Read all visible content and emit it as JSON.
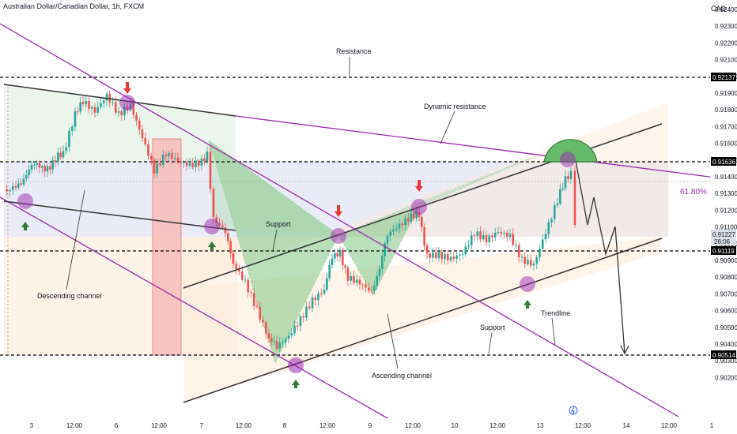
{
  "header": {
    "symbol_title": "Australian Dollar/Canadian Dollar, 1h, FXCM",
    "currency": "CAD"
  },
  "chart_data": {
    "type": "candlestick",
    "title": "Australian Dollar/Canadian Dollar, 1h, FXCM",
    "ylabel": "CAD",
    "ylim": [
      0.9015,
      0.9255
    ],
    "y_ticks": [
      "0.92400",
      "0.92300",
      "0.92200",
      "0.92100",
      "0.92000",
      "0.91900",
      "0.91800",
      "0.91700",
      "0.91600",
      "0.91500",
      "0.91400",
      "0.91300",
      "0.91200",
      "0.91100",
      "0.91000",
      "0.90900",
      "0.90800",
      "0.90700",
      "0.90600",
      "0.90500",
      "0.90400",
      "0.90300",
      "0.90200"
    ],
    "x_ticks": [
      "3",
      "12:00",
      "6",
      "12:00",
      "7",
      "12:00",
      "8",
      "12:00",
      "9",
      "12:00",
      "10",
      "12:00",
      "13",
      "12:00",
      "14",
      "12:00",
      "1"
    ],
    "price_labels": [
      {
        "value": "0.92137",
        "color": "#000000"
      },
      {
        "value": "0.91636",
        "color": "#000000"
      },
      {
        "value": "0.91227",
        "color": "#d9e0e8",
        "subtext": "26:06"
      },
      {
        "value": "0.91119",
        "color": "#000000"
      },
      {
        "value": "0.90514",
        "color": "#000000"
      }
    ],
    "fib_label": "61.80%",
    "annotations": [
      "Resistance",
      "Dynamic resistance",
      "Support",
      "Descending channel",
      "Ascending channel",
      "Support",
      "Trendline"
    ],
    "colors": {
      "up": "#26a69a",
      "down": "#ef5350",
      "channel": "#9c27b0",
      "pattern": "#4caf50",
      "marker": "#9c27b0"
    },
    "grid": false
  }
}
